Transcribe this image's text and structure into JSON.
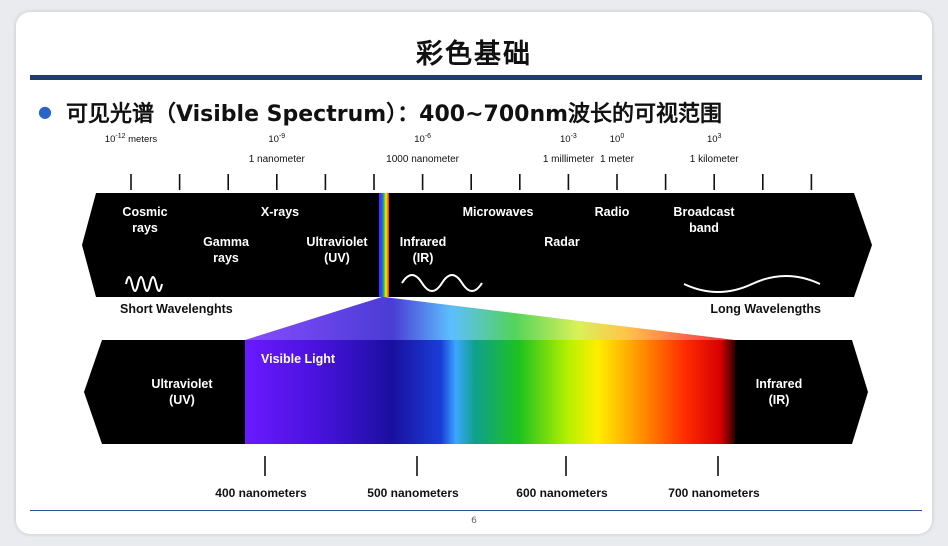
{
  "slide": {
    "title": "彩色基础",
    "bullet": "可见光谱（Visible Spectrum）：400~700nm波长的可视范围",
    "page_number": "6"
  },
  "scale": {
    "powers": [
      {
        "base": "10",
        "exp": "-12",
        "unit": "meters",
        "tick": 0
      },
      {
        "base": "10",
        "exp": "-9",
        "unit": "",
        "tick": 3
      },
      {
        "base": "10",
        "exp": "-6",
        "unit": "",
        "tick": 6
      },
      {
        "base": "10",
        "exp": "-3",
        "unit": "",
        "tick": 9
      },
      {
        "base": "10",
        "exp": "0",
        "unit": "",
        "tick": 10
      },
      {
        "base": "10",
        "exp": "3",
        "unit": "",
        "tick": 12
      }
    ],
    "units": [
      {
        "text": "1 nanometer",
        "tick": 3
      },
      {
        "text": "1000 nanometer",
        "tick": 6
      },
      {
        "text": "1 millimeter",
        "tick": 9
      },
      {
        "text": "1 meter",
        "tick": 10
      },
      {
        "text": "1 kilometer",
        "tick": 12
      }
    ],
    "tick_count": 15
  },
  "top_band": {
    "bands": [
      {
        "lines": [
          "Cosmic",
          "rays"
        ]
      },
      {
        "lines": [
          "Gamma",
          "rays"
        ]
      },
      {
        "lines": [
          "X-rays"
        ]
      },
      {
        "lines": [
          "Ultraviolet",
          "(UV)"
        ]
      },
      {
        "lines": [
          "Infrared",
          "(IR)"
        ]
      },
      {
        "lines": [
          "Microwaves"
        ]
      },
      {
        "lines": [
          "Radar"
        ]
      },
      {
        "lines": [
          "Radio"
        ]
      },
      {
        "lines": [
          "Broadcast",
          "band"
        ]
      }
    ],
    "short_label": "Short Wavelenghts",
    "long_label": "Long Wavelengths"
  },
  "bottom_band": {
    "uv": [
      "Ultraviolet",
      "(UV)"
    ],
    "visible": "Visible Light",
    "ir": [
      "Infrared",
      "(IR)"
    ],
    "nm_labels": [
      "400 nanometers",
      "500 nanometers",
      "600 nanometers",
      "700 nanometers"
    ]
  },
  "colors": {
    "title_rule": "#1f3b78",
    "bullet_dot": "#2b64c9",
    "band_black": "#000000",
    "band_text": "#ffffff"
  }
}
